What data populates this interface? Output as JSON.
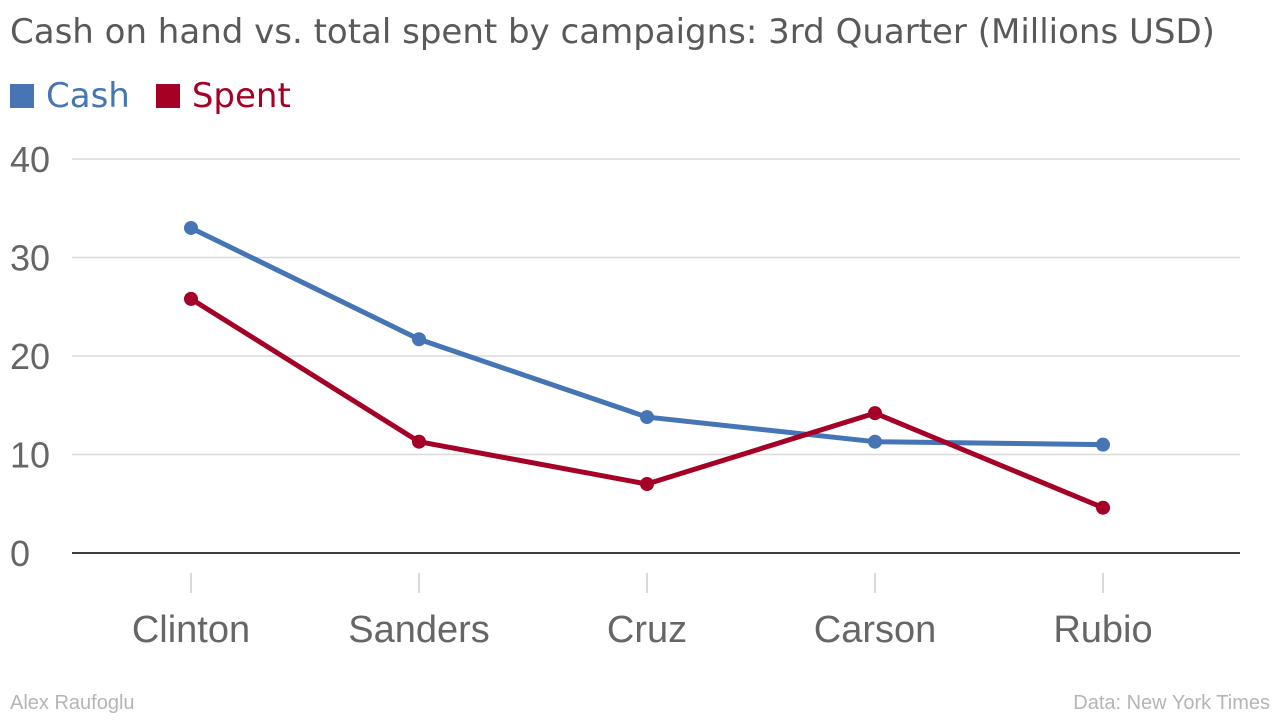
{
  "title": "Cash on hand vs. total spent by campaigns: 3rd Quarter (Millions USD)",
  "footer": {
    "author": "Alex Raufoglu",
    "source": "Data: New York Times"
  },
  "colors": {
    "cash": "#4575b4",
    "spent": "#a50026",
    "grid": "#d9d9d9",
    "axis": "#000000",
    "tick_text": "#666666"
  },
  "chart_data": {
    "type": "line",
    "title": "Cash on hand vs. total spent by campaigns: 3rd Quarter (Millions USD)",
    "xlabel": "",
    "ylabel": "",
    "categories": [
      "Clinton",
      "Sanders",
      "Cruz",
      "Carson",
      "Rubio"
    ],
    "series": [
      {
        "name": "Cash",
        "color": "#4575b4",
        "values": [
          33.0,
          21.7,
          13.8,
          11.3,
          11.0
        ]
      },
      {
        "name": "Spent",
        "color": "#a50026",
        "values": [
          25.8,
          11.3,
          7.0,
          14.2,
          4.6
        ]
      }
    ],
    "ylim": [
      0,
      40
    ],
    "yticks": [
      0,
      10,
      20,
      30,
      40
    ],
    "grid": true,
    "legend": "top-left"
  }
}
